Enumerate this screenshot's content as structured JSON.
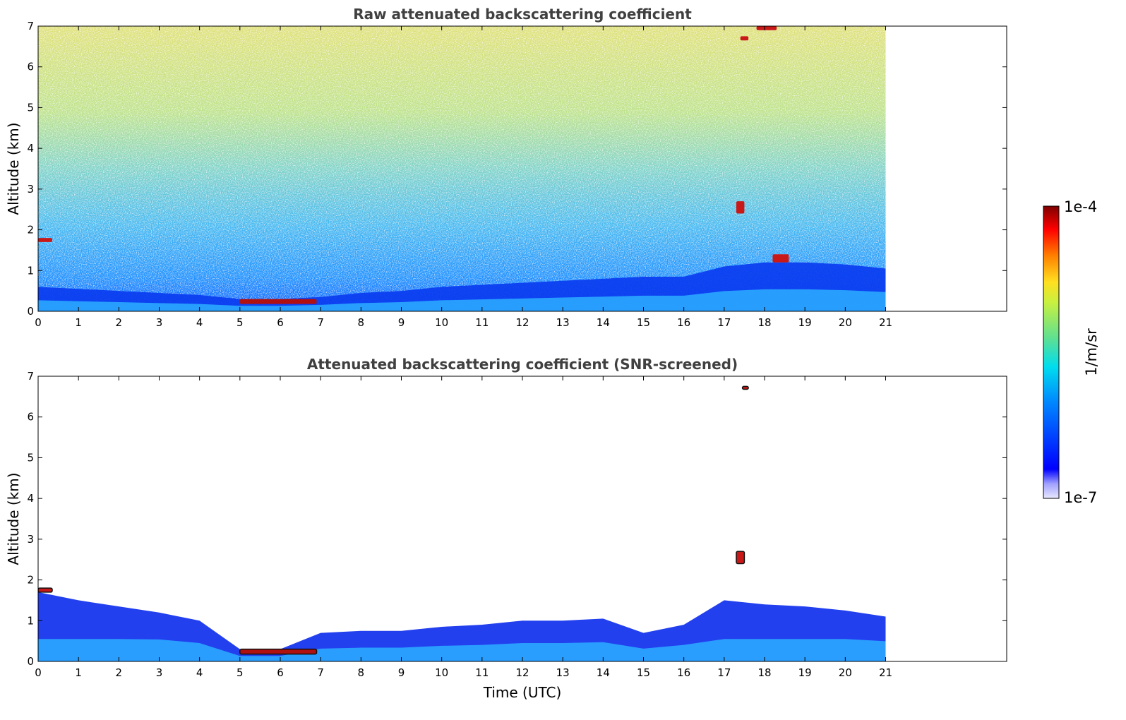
{
  "chart_data": [
    {
      "type": "heatmap",
      "title": "Raw attenuated backscattering coefficient",
      "xlabel": "",
      "ylabel": "Altitude (km)",
      "xlim": [
        0,
        24
      ],
      "ylim": [
        0,
        7
      ],
      "xticks": [
        "0",
        "1",
        "2",
        "3",
        "4",
        "5",
        "6",
        "7",
        "8",
        "9",
        "10",
        "11",
        "12",
        "13",
        "14",
        "15",
        "16",
        "17",
        "18",
        "19",
        "20",
        "21"
      ],
      "yticks": [
        "0",
        "1",
        "2",
        "3",
        "4",
        "5",
        "6",
        "7"
      ],
      "data_extent_x": [
        0,
        21
      ],
      "features": [
        {
          "kind": "boundary_layer",
          "x": [
            0,
            21
          ],
          "top_km": [
            0.6,
            0.55,
            0.5,
            0.45,
            0.4,
            0.3,
            0.3,
            0.35,
            0.45,
            0.5,
            0.6,
            0.65,
            0.7,
            0.75,
            0.8,
            0.85,
            0.85,
            1.1,
            1.2,
            1.2,
            1.15,
            1.05
          ]
        },
        {
          "kind": "dense_layer",
          "x": [
            5.0,
            6.9
          ],
          "y": [
            0.18,
            0.3
          ]
        },
        {
          "kind": "cloud",
          "x": [
            0.0,
            0.35
          ],
          "y": [
            1.7,
            1.8
          ]
        },
        {
          "kind": "cloud",
          "x": [
            17.3,
            17.5
          ],
          "y": [
            2.4,
            2.7
          ]
        },
        {
          "kind": "cloud",
          "x": [
            18.2,
            18.6
          ],
          "y": [
            1.2,
            1.4
          ]
        },
        {
          "kind": "cloud",
          "x": [
            17.4,
            17.6
          ],
          "y": [
            6.65,
            6.75
          ]
        },
        {
          "kind": "cloud",
          "x": [
            17.8,
            18.3
          ],
          "y": [
            6.9,
            7.0
          ]
        }
      ]
    },
    {
      "type": "heatmap",
      "title": "Attenuated backscattering coefficient (SNR-screened)",
      "xlabel": "Time (UTC)",
      "ylabel": "Altitude (km)",
      "xlim": [
        0,
        24
      ],
      "ylim": [
        0,
        7
      ],
      "xticks": [
        "0",
        "1",
        "2",
        "3",
        "4",
        "5",
        "6",
        "7",
        "8",
        "9",
        "10",
        "11",
        "12",
        "13",
        "14",
        "15",
        "16",
        "17",
        "18",
        "19",
        "20",
        "21"
      ],
      "yticks": [
        "0",
        "1",
        "2",
        "3",
        "4",
        "5",
        "6",
        "7"
      ],
      "data_extent_x": [
        0,
        21
      ],
      "features": [
        {
          "kind": "screened_aerosol",
          "x": [
            0,
            21
          ],
          "top_km": [
            1.7,
            1.5,
            1.35,
            1.2,
            1.0,
            0.3,
            0.3,
            0.7,
            0.75,
            0.75,
            0.85,
            0.9,
            1.0,
            1.0,
            1.05,
            0.7,
            0.9,
            1.5,
            1.4,
            1.35,
            1.25,
            1.1
          ]
        },
        {
          "kind": "dense_layer",
          "x": [
            5.0,
            6.9
          ],
          "y": [
            0.18,
            0.3
          ]
        },
        {
          "kind": "cloud",
          "x": [
            0.0,
            0.35
          ],
          "y": [
            1.7,
            1.8
          ]
        },
        {
          "kind": "cloud",
          "x": [
            17.3,
            17.5
          ],
          "y": [
            2.4,
            2.7
          ]
        },
        {
          "kind": "cloud",
          "x": [
            17.45,
            17.6
          ],
          "y": [
            6.68,
            6.75
          ]
        }
      ]
    }
  ],
  "colorbar": {
    "label": "1/m/sr",
    "max_label": "1e-4",
    "min_label": "1e-7",
    "scale": "log",
    "colormap": [
      "#e8e8ff",
      "#0000ff",
      "#00aaff",
      "#00e5d0",
      "#8be660",
      "#ffe020",
      "#ff8000",
      "#ff0000",
      "#7f0000"
    ]
  }
}
